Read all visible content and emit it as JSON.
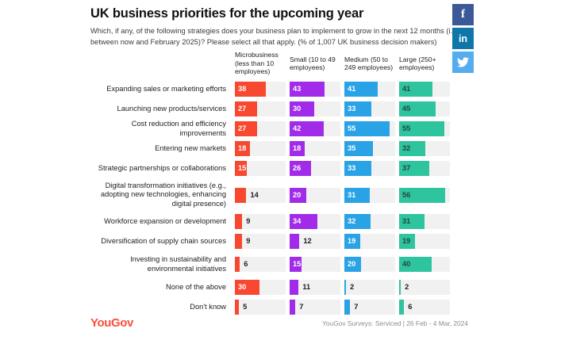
{
  "header": {
    "title": "UK business priorities for the upcoming year",
    "subtitle": "Which, if any, of the following strategies does your business plan to implement to grow in the next 12 months (i.e. between now and February 2025)? Please select all that apply. (% of 1,007 UK business decision makers)"
  },
  "social": {
    "facebook": {
      "glyph": "f",
      "color": "#3b5998"
    },
    "linkedin": {
      "glyph": "in",
      "color": "#0e76a8"
    },
    "twitter": {
      "color": "#55acee"
    }
  },
  "chart_data": {
    "type": "bar",
    "orientation": "horizontal",
    "axis_max": 62,
    "inside_label_min": 15,
    "track_color": "#f1f1f2",
    "columns": [
      {
        "label": "Microbusiness (less than 10 employees)",
        "color": "#f8482f",
        "value_color": "#ffffff"
      },
      {
        "label": "Small (10 to 49 employees)",
        "color": "#a12be8",
        "value_color": "#ffffff"
      },
      {
        "label": "Medium (50 to 249 employees)",
        "color": "#29a3e6",
        "value_color": "#ffffff"
      },
      {
        "label": "Large (250+ employees)",
        "color": "#2ec49e",
        "value_color": "#26453f"
      }
    ],
    "categories": [
      "Expanding sales or marketing efforts",
      "Launching new products/services",
      "Cost reduction and efficiency improvements",
      "Entering new markets",
      "Strategic partnerships or collaborations",
      "Digital transformation initiatives (e.g., adopting new technologies, enhancing digital presence)",
      "Workforce expansion or development",
      "Diversification of supply chain sources",
      "Investing in sustainability and environmental initiatives",
      "None of the above",
      "Don't know"
    ],
    "series": [
      {
        "name": "Microbusiness (less than 10 employees)",
        "values": [
          38,
          27,
          27,
          18,
          15,
          14,
          9,
          9,
          6,
          30,
          5
        ]
      },
      {
        "name": "Small (10 to 49 employees)",
        "values": [
          43,
          30,
          42,
          18,
          26,
          20,
          34,
          12,
          15,
          11,
          7
        ]
      },
      {
        "name": "Medium (50 to 249 employees)",
        "values": [
          41,
          33,
          55,
          35,
          33,
          31,
          32,
          19,
          20,
          2,
          7
        ]
      },
      {
        "name": "Large (250+ employees)",
        "values": [
          41,
          45,
          55,
          32,
          37,
          56,
          31,
          19,
          40,
          2,
          6
        ]
      }
    ],
    "row_height_classes": [
      "",
      "",
      "",
      "",
      "",
      "tall3",
      "",
      "",
      "tall2",
      "",
      ""
    ]
  },
  "footer": {
    "logo_text": "YouGov",
    "source": "YouGov Surveys: Serviced | 26 Feb - 4 Mar, 2024"
  }
}
